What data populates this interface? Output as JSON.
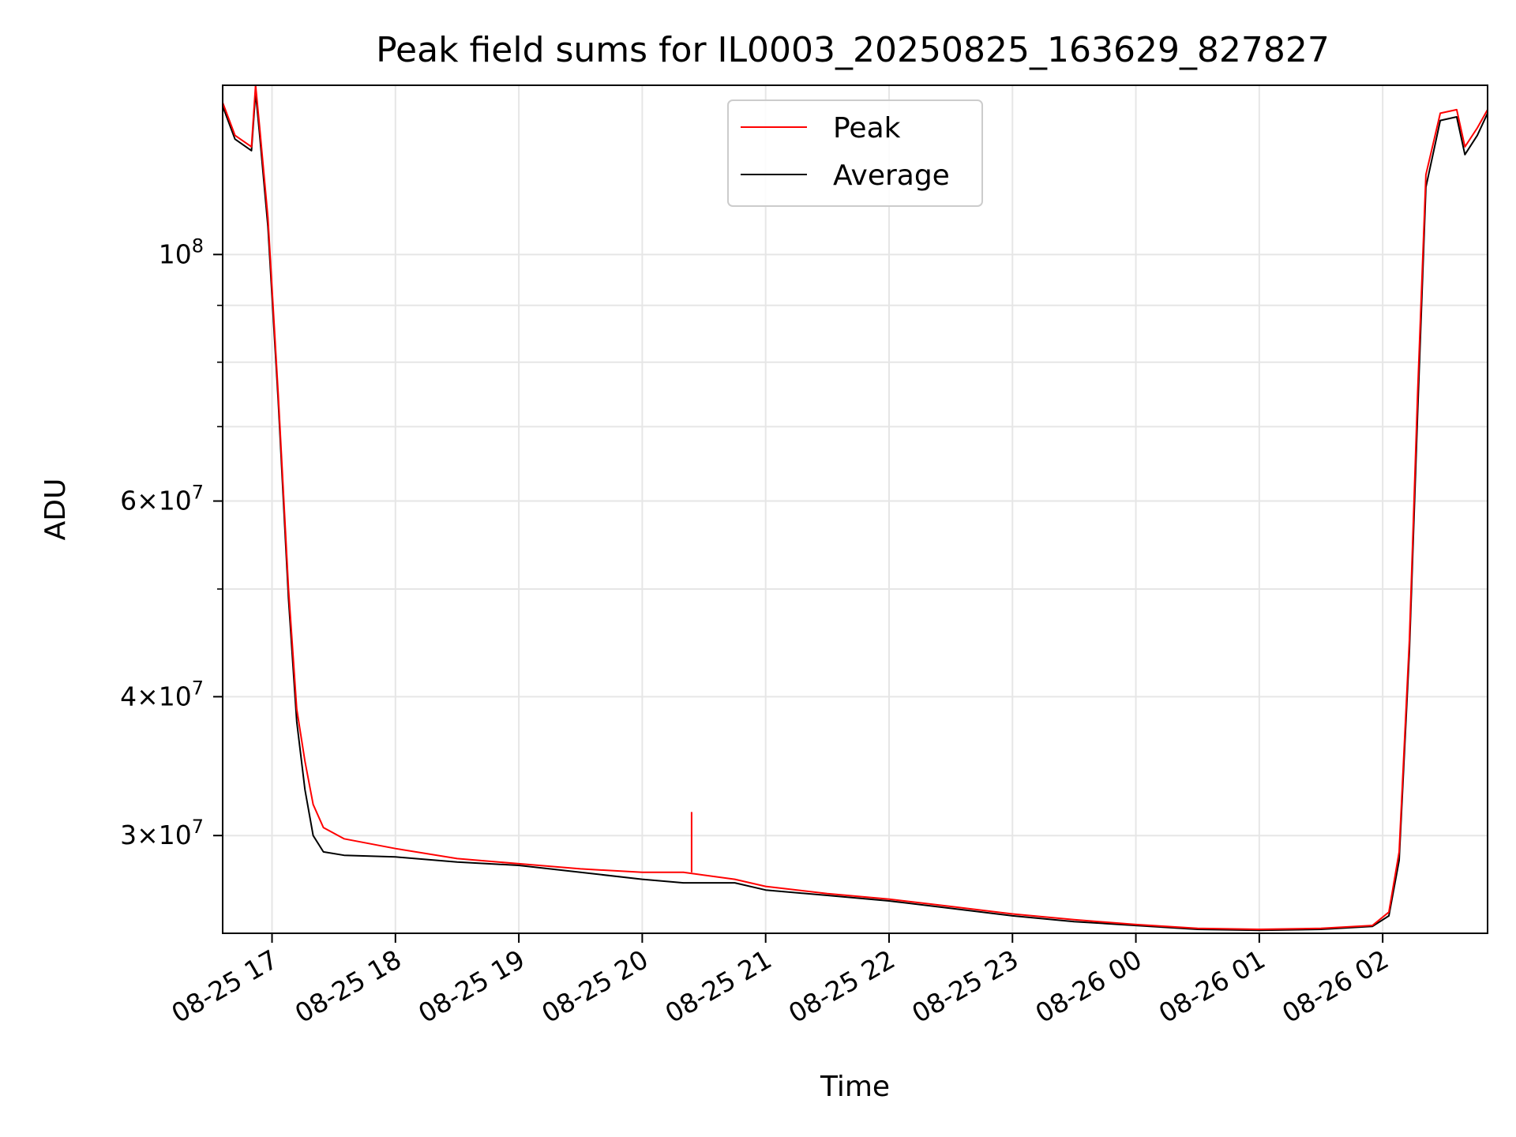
{
  "chart_data": {
    "type": "line",
    "title": "Peak field sums for IL0003_20250825_163629_827827",
    "xlabel": "Time",
    "ylabel": "ADU",
    "y_scale": "log",
    "ylim": [
      24500000,
      142000000
    ],
    "xlim": [
      "2025-08-25 16:36",
      "2025-08-26 02:51"
    ],
    "grid": true,
    "legend_position": "top-center",
    "x_ticks": [
      {
        "label": "08-25 17",
        "value": "2025-08-25 17:00"
      },
      {
        "label": "08-25 18",
        "value": "2025-08-25 18:00"
      },
      {
        "label": "08-25 19",
        "value": "2025-08-25 19:00"
      },
      {
        "label": "08-25 20",
        "value": "2025-08-25 20:00"
      },
      {
        "label": "08-25 21",
        "value": "2025-08-25 21:00"
      },
      {
        "label": "08-25 22",
        "value": "2025-08-25 22:00"
      },
      {
        "label": "08-25 23",
        "value": "2025-08-25 23:00"
      },
      {
        "label": "08-26 00",
        "value": "2025-08-26 00:00"
      },
      {
        "label": "08-26 01",
        "value": "2025-08-26 01:00"
      },
      {
        "label": "08-26 02",
        "value": "2025-08-26 02:00"
      }
    ],
    "y_major_ticks": [
      {
        "value": 30000000,
        "mantissa": "3",
        "exponent": "7"
      },
      {
        "value": 40000000,
        "mantissa": "4",
        "exponent": "7"
      },
      {
        "value": 60000000,
        "mantissa": "6",
        "exponent": "7"
      },
      {
        "value": 100000000,
        "mantissa": "",
        "exponent": "8"
      }
    ],
    "y_minor_ticks": [
      50000000,
      70000000,
      80000000,
      90000000
    ],
    "series": [
      {
        "name": "Peak",
        "color": "#ff0000",
        "x": [
          "2025-08-25 16:36",
          "2025-08-25 16:42",
          "2025-08-25 16:50",
          "2025-08-25 16:52",
          "2025-08-25 16:54",
          "2025-08-25 16:58",
          "2025-08-25 17:03",
          "2025-08-25 17:08",
          "2025-08-25 17:12",
          "2025-08-25 17:16",
          "2025-08-25 17:20",
          "2025-08-25 17:25",
          "2025-08-25 17:35",
          "2025-08-25 18:00",
          "2025-08-25 18:30",
          "2025-08-25 19:00",
          "2025-08-25 19:30",
          "2025-08-25 20:00",
          "2025-08-25 20:20",
          "2025-08-25 20:45",
          "2025-08-25 21:00",
          "2025-08-25 21:30",
          "2025-08-25 22:00",
          "2025-08-25 22:30",
          "2025-08-25 23:00",
          "2025-08-25 23:30",
          "2025-08-26 00:00",
          "2025-08-26 00:30",
          "2025-08-26 01:00",
          "2025-08-26 01:30",
          "2025-08-26 01:55",
          "2025-08-26 02:03",
          "2025-08-26 02:08",
          "2025-08-26 02:13",
          "2025-08-26 02:17",
          "2025-08-26 02:21",
          "2025-08-26 02:28",
          "2025-08-26 02:36",
          "2025-08-26 02:40",
          "2025-08-26 02:46",
          "2025-08-26 02:51"
        ],
        "values": [
          137000000,
          128000000,
          125000000,
          145000000,
          130000000,
          108000000,
          75000000,
          50000000,
          39000000,
          35000000,
          32000000,
          30500000,
          29800000,
          29200000,
          28600000,
          28300000,
          28000000,
          27800000,
          27800000,
          27400000,
          27000000,
          26600000,
          26300000,
          25900000,
          25500000,
          25200000,
          24950000,
          24750000,
          24700000,
          24750000,
          24900000,
          25600000,
          29000000,
          45000000,
          75000000,
          118000000,
          134000000,
          135000000,
          125000000,
          130000000,
          135000000
        ]
      },
      {
        "name": "Average",
        "color": "#000000",
        "x": [
          "2025-08-25 16:36",
          "2025-08-25 16:42",
          "2025-08-25 16:50",
          "2025-08-25 16:52",
          "2025-08-25 16:54",
          "2025-08-25 16:58",
          "2025-08-25 17:03",
          "2025-08-25 17:08",
          "2025-08-25 17:12",
          "2025-08-25 17:16",
          "2025-08-25 17:20",
          "2025-08-25 17:25",
          "2025-08-25 17:35",
          "2025-08-25 18:00",
          "2025-08-25 18:30",
          "2025-08-25 19:00",
          "2025-08-25 19:30",
          "2025-08-25 20:00",
          "2025-08-25 20:20",
          "2025-08-25 20:45",
          "2025-08-25 21:00",
          "2025-08-25 21:30",
          "2025-08-25 22:00",
          "2025-08-25 22:30",
          "2025-08-25 23:00",
          "2025-08-25 23:30",
          "2025-08-26 00:00",
          "2025-08-26 00:30",
          "2025-08-26 01:00",
          "2025-08-26 01:30",
          "2025-08-26 01:55",
          "2025-08-26 02:03",
          "2025-08-26 02:08",
          "2025-08-26 02:13",
          "2025-08-26 02:17",
          "2025-08-26 02:21",
          "2025-08-26 02:28",
          "2025-08-26 02:36",
          "2025-08-26 02:40",
          "2025-08-26 02:46",
          "2025-08-26 02:51"
        ],
        "values": [
          136000000,
          127000000,
          124000000,
          140000000,
          128000000,
          106000000,
          74000000,
          49000000,
          38000000,
          33000000,
          30000000,
          29000000,
          28800000,
          28700000,
          28400000,
          28200000,
          27800000,
          27400000,
          27200000,
          27200000,
          26800000,
          26500000,
          26200000,
          25800000,
          25400000,
          25100000,
          24900000,
          24700000,
          24650000,
          24700000,
          24850000,
          25400000,
          28500000,
          44000000,
          72000000,
          115000000,
          132000000,
          133000000,
          123000000,
          128000000,
          134000000
        ]
      }
    ],
    "spikes": [
      {
        "series": "Peak",
        "x": "2025-08-25 20:24",
        "value": 31500000
      }
    ]
  }
}
